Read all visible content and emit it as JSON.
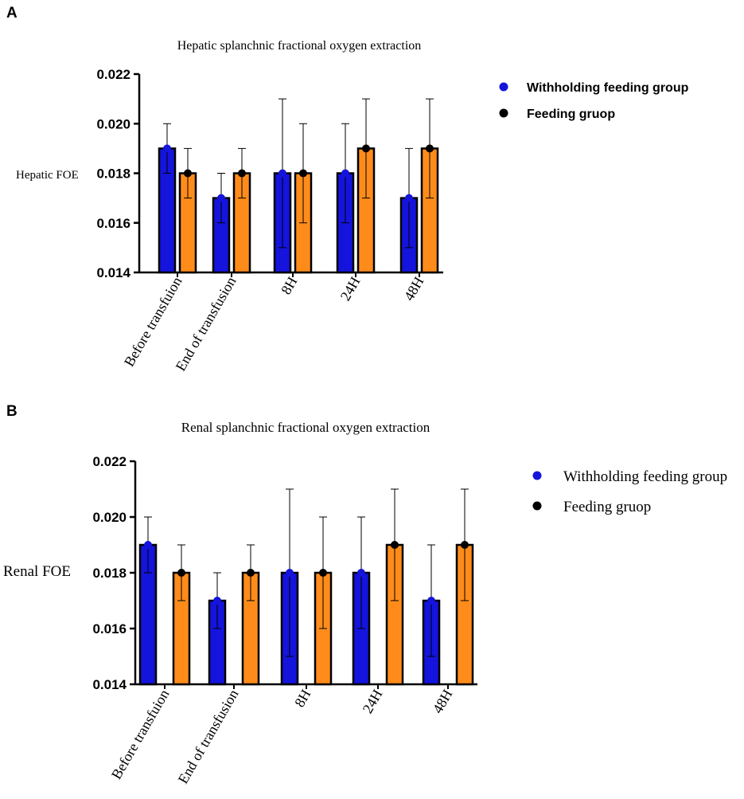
{
  "chart_data": [
    {
      "panel": "A",
      "type": "bar",
      "title": "Hepatic splanchnic fractional oxygen extraction",
      "ylabel": "Hepatic FOE",
      "xlabel": "",
      "ylim": [
        0.014,
        0.022
      ],
      "yticks": [
        "0.014",
        "0.016",
        "0.018",
        "0.020",
        "0.022"
      ],
      "categories": [
        "Before transfuion",
        "End of transfusion",
        "8H",
        "24H",
        "48H"
      ],
      "series": [
        {
          "name": "Withholding feeding group",
          "color": "#1414dc",
          "values": [
            0.019,
            0.017,
            0.018,
            0.018,
            0.017
          ],
          "err_low": [
            0.018,
            0.016,
            0.015,
            0.016,
            0.015
          ],
          "err_high": [
            0.02,
            0.018,
            0.021,
            0.02,
            0.019
          ]
        },
        {
          "name": "Feeding gruop",
          "color": "#ff8c1a",
          "values": [
            0.018,
            0.018,
            0.018,
            0.019,
            0.019
          ],
          "err_low": [
            0.017,
            0.017,
            0.016,
            0.017,
            0.017
          ],
          "err_high": [
            0.019,
            0.019,
            0.02,
            0.021,
            0.021
          ]
        }
      ],
      "legend": "right"
    },
    {
      "panel": "B",
      "type": "bar",
      "title": "Renal splanchnic fractional oxygen extraction",
      "ylabel": "Renal FOE",
      "xlabel": "",
      "ylim": [
        0.014,
        0.022
      ],
      "yticks": [
        "0.014",
        "0.016",
        "0.018",
        "0.020",
        "0.022"
      ],
      "categories": [
        "Before transfuion",
        "End of transfusion",
        "8H",
        "24H",
        "48H"
      ],
      "series": [
        {
          "name": "Withholding feeding group",
          "color": "#1414dc",
          "values": [
            0.019,
            0.017,
            0.018,
            0.018,
            0.017
          ],
          "err_low": [
            0.018,
            0.016,
            0.015,
            0.016,
            0.015
          ],
          "err_high": [
            0.02,
            0.018,
            0.021,
            0.02,
            0.019
          ]
        },
        {
          "name": "Feeding gruop",
          "color": "#ff8c1a",
          "values": [
            0.018,
            0.018,
            0.018,
            0.019,
            0.019
          ],
          "err_low": [
            0.017,
            0.017,
            0.016,
            0.017,
            0.017
          ],
          "err_high": [
            0.019,
            0.019,
            0.02,
            0.021,
            0.021
          ]
        }
      ],
      "legend": "right"
    }
  ]
}
